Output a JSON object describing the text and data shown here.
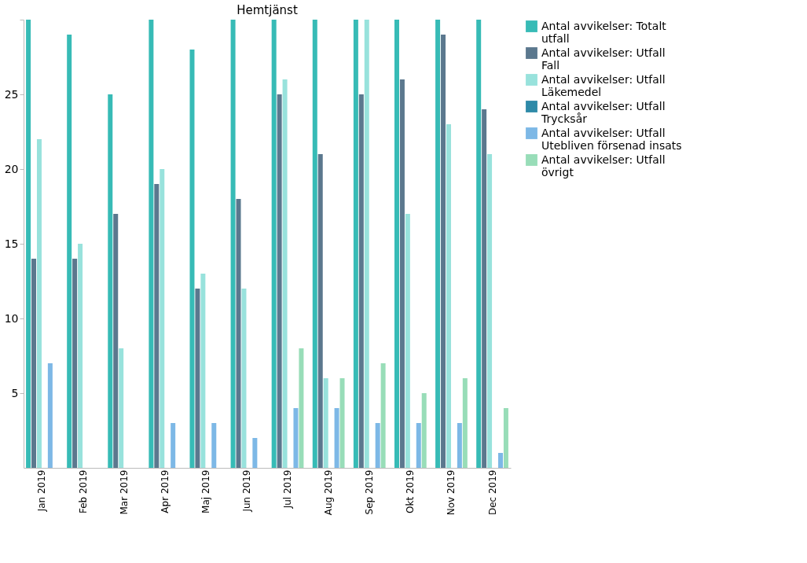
{
  "chart_data": {
    "type": "bar",
    "title": "Hemtjänst",
    "categories": [
      "Jan 2019",
      "Feb 2019",
      "Mar 2019",
      "Apr 2019",
      "Maj 2019",
      "Jun 2019",
      "Jul 2019",
      "Aug 2019",
      "Sep 2019",
      "Okt 2019",
      "Nov 2019",
      "Dec 2019"
    ],
    "series": [
      {
        "name": "Antal avvikelser: Totalt utfall",
        "color": "#37bbb6",
        "values": [
          30,
          29,
          25,
          30,
          28,
          30,
          30,
          30,
          30,
          30,
          30,
          30
        ]
      },
      {
        "name": "Antal avvikelser: Utfall Fall",
        "color": "#5b788e",
        "values": [
          14,
          14,
          17,
          19,
          12,
          18,
          25,
          21,
          25,
          26,
          29,
          24
        ]
      },
      {
        "name": "Antal avvikelser: Utfall Läkemedel",
        "color": "#98e2dc",
        "values": [
          22,
          15,
          8,
          20,
          13,
          12,
          26,
          6,
          30,
          17,
          23,
          21
        ]
      },
      {
        "name": "Antal avvikelser: Utfall Trycksår",
        "color": "#2e8aa8",
        "values": [
          null,
          null,
          null,
          null,
          null,
          null,
          null,
          null,
          null,
          null,
          null,
          null
        ]
      },
      {
        "name": "Antal avvikelser: Utfall Utebliven försenad insats",
        "color": "#7db8e6",
        "values": [
          7,
          null,
          null,
          3,
          3,
          2,
          4,
          4,
          3,
          3,
          3,
          1
        ]
      },
      {
        "name": "Antal avvikelser: Utfall övrigt",
        "color": "#98ddb8",
        "values": [
          null,
          null,
          null,
          null,
          null,
          null,
          8,
          6,
          7,
          5,
          6,
          4
        ]
      }
    ],
    "ylim": [
      0,
      30
    ],
    "yticks": [
      5,
      10,
      15,
      20,
      25,
      {
        "value": 30,
        "label": null
      }
    ],
    "grid": false,
    "legend": "top right"
  }
}
